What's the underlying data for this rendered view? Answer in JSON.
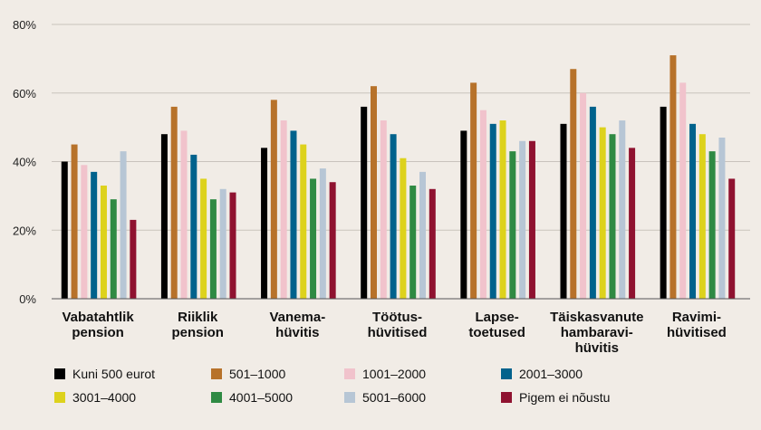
{
  "chart_data": {
    "type": "bar",
    "ylim": [
      0,
      80
    ],
    "yticks": [
      "0%",
      "20%",
      "40%",
      "60%",
      "80%"
    ],
    "grid": true,
    "legend_position": "bottom",
    "categories": [
      [
        "Vabatahtlik",
        "pension"
      ],
      [
        "Riiklik",
        "pension"
      ],
      [
        "Vanema-",
        "hüvitis"
      ],
      [
        "Töötus-",
        "hüvitised"
      ],
      [
        "Lapse-",
        "toetused"
      ],
      [
        "Täiskasvanute",
        "hambaravi-",
        "hüvitis"
      ],
      [
        "Ravimi-",
        "hüvitised"
      ]
    ],
    "series": [
      {
        "name": "Kuni 500 eurot",
        "color": "#000000",
        "values": [
          40,
          48,
          44,
          56,
          49,
          51,
          56
        ]
      },
      {
        "name": "501–1000",
        "color": "#b7722a",
        "values": [
          45,
          56,
          58,
          62,
          63,
          67,
          71
        ]
      },
      {
        "name": "1001–2000",
        "color": "#f1c3cc",
        "values": [
          39,
          49,
          52,
          52,
          55,
          60,
          63
        ]
      },
      {
        "name": "2001–3000",
        "color": "#00628c",
        "values": [
          37,
          42,
          49,
          48,
          51,
          56,
          51
        ]
      },
      {
        "name": "3001–4000",
        "color": "#ddd21c",
        "values": [
          33,
          35,
          45,
          41,
          52,
          50,
          48
        ]
      },
      {
        "name": "4001–5000",
        "color": "#2f8a43",
        "values": [
          29,
          29,
          35,
          33,
          43,
          48,
          43
        ]
      },
      {
        "name": "5001–6000",
        "color": "#b7c6d5",
        "values": [
          43,
          32,
          38,
          37,
          46,
          52,
          47
        ]
      },
      {
        "name": "Pigem ei nõustu",
        "color": "#8f1230",
        "values": [
          23,
          31,
          34,
          32,
          46,
          44,
          35
        ]
      }
    ]
  }
}
